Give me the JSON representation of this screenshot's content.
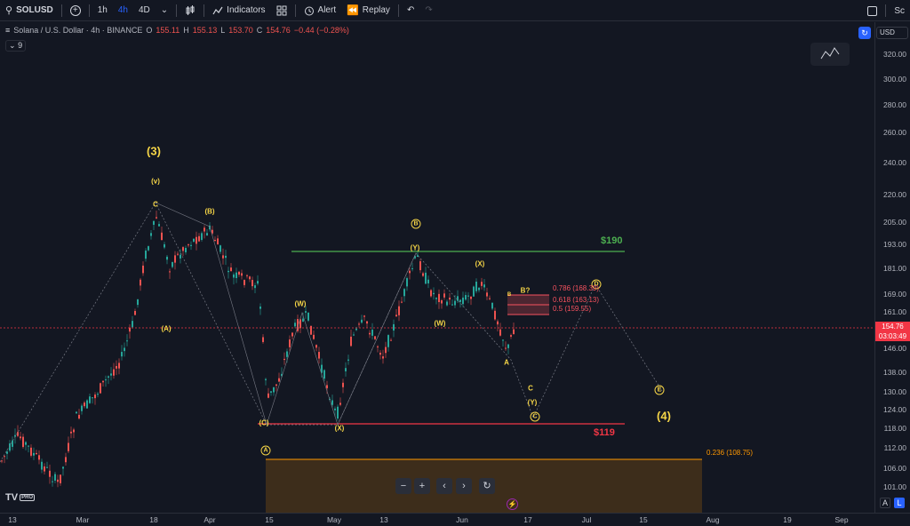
{
  "toolbar": {
    "symbol": "SOLUSD",
    "intervals": [
      "1h",
      "4h",
      "4D"
    ],
    "active_interval": "4h",
    "indicators": "Indicators",
    "alert": "Alert",
    "replay": "Replay",
    "right_text": "Sc"
  },
  "legend": {
    "title": "Solana / U.S. Dollar · 4h · BINANCE",
    "open_label": "O",
    "open": "155.11",
    "high_label": "H",
    "high": "155.13",
    "low_label": "L",
    "low": "153.70",
    "close_label": "C",
    "close": "154.76",
    "change": "−0.44 (−0.28%)",
    "indicator_count": "9"
  },
  "price_axis": {
    "currency": "USD",
    "ticks": [
      "320.00",
      "300.00",
      "280.00",
      "260.00",
      "240.00",
      "220.00",
      "205.00",
      "193.00",
      "181.00",
      "169.00",
      "161.00",
      "146.00",
      "138.00",
      "130.00",
      "124.00",
      "118.00",
      "112.00",
      "106.00",
      "101.00"
    ],
    "last_price": "154.76",
    "countdown": "03:03:49"
  },
  "time_axis": {
    "ticks": [
      "13",
      "Mar",
      "18",
      "Apr",
      "15",
      "May",
      "13",
      "Jun",
      "17",
      "Jul",
      "15",
      "Aug",
      "19",
      "Sep"
    ],
    "auto_label": "A",
    "log_label": "L"
  },
  "annotations": {
    "wave3": "(3)",
    "wave4": "(4)",
    "v": "(v)",
    "c_top": "C",
    "b_small": "(B)",
    "a_small": "(A)",
    "c_small": "(C)",
    "w1": "(W)",
    "x1": "(X)",
    "y1": "(Y)",
    "w2": "(W)",
    "x2": "(X)",
    "y2": "(Y)",
    "a_lower": "A",
    "c_lower": "C",
    "b_q": "B?",
    "circle_a": "A",
    "circle_b": "B",
    "circle_c": "C",
    "circle_d": "D",
    "circle_e": "E",
    "target_high": "$190",
    "target_low": "$119",
    "fib_786": "0.786 (168.39)",
    "fib_618": "0.618 (163.13)",
    "fib_5": "0.5 (159.55)",
    "fib_236": "0.236 (108.75)"
  },
  "logo": {
    "text": "TV",
    "badge": "PRO"
  },
  "colors": {
    "background": "#131722",
    "up": "#26a69a",
    "down": "#ef5350",
    "wave": "#f5d547",
    "resistance": "#4caf50",
    "support": "#f23645",
    "fib_zone": "#f7525f",
    "fib_236": "#ff9800"
  },
  "icons": [
    "search-icon",
    "plus-circle-icon",
    "candles-icon",
    "indicators-icon",
    "templates-icon",
    "alert-icon",
    "replay-icon",
    "undo-icon",
    "redo-icon",
    "fullscreen-icon",
    "zoom-out-icon",
    "zoom-in-icon",
    "scroll-left-icon",
    "scroll-right-icon",
    "reset-icon",
    "lightning-icon"
  ]
}
